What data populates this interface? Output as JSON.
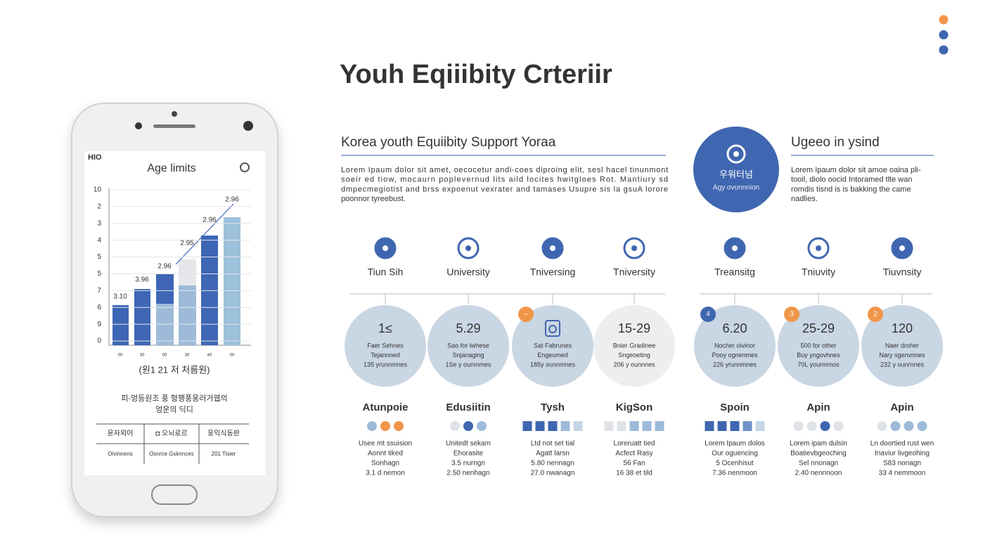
{
  "title": "Youh  Eqiiibity Crteriir",
  "corner_dots": [
    "#f0964a",
    "#3f66b0",
    "#3f66b0"
  ],
  "phone": {
    "status_left": "HIO",
    "chart_title": "Age limits",
    "y_labels": [
      "10",
      "2",
      "3",
      "4",
      "5",
      "5",
      "7",
      "6",
      "9",
      "0"
    ],
    "bar_labels": [
      "3.10",
      "3.96",
      "2.96",
      "2.95",
      "2.96",
      "2.96"
    ],
    "x_labels": [
      "00",
      "30",
      "00",
      "30",
      "40",
      "00"
    ],
    "caption": "(원1 21 저 처름원)",
    "description": [
      "피-엉등원조 풍 형행풍웅러거웹의",
      "엉운의 딕디"
    ],
    "table": [
      [
        "윤자외어",
        "◘ 오뇌로르",
        "웅익식동판"
      ],
      [
        "Oivinnens",
        "Osnrce Gsknnces",
        "201 Tisier"
      ]
    ]
  },
  "section_left": {
    "heading": "Korea youth Equiibity Support Yoraa",
    "text": [
      "Lorem Ipaum dolor sit amet, oecocetur andi-coes diproing elit, sesl hacel tinunmont",
      "soeir ed tiow, mocaurn poplevernud lits aild locites hwitgloes Rot. Mantiury sd",
      "dmpecmegiotist and brss expoenut vexrater and tamases Usupre sis la gsuA lorore",
      "poonnor tyreebust."
    ]
  },
  "badge": {
    "label": "우워터넘",
    "sub": "Agy ovunnnion"
  },
  "section_right": {
    "heading": "Ugeeo in ysind",
    "text": [
      "Lorem Ipaum dolor sit amoe oaina pli-",
      "tooil, diolo oocid Intoramed tlte wan",
      "romdis tisnd is is bakking the came",
      "nadlies."
    ]
  },
  "columns": [
    {
      "icon_label": "Tiun Sih",
      "circle": {
        "value": "1≤",
        "lines": [
          "Faer Sehnes",
          "Tejannned",
          "135 yrunnmnes"
        ]
      },
      "name": "Atunpoie",
      "dots": [
        "#9dbbd9",
        "#f0964a",
        "#f0964a"
      ],
      "dot_shape": "circle",
      "lines": [
        "Usee mt ssuision",
        "Aonnt tiked",
        "Sonhagn",
        "3.1 d nemon"
      ]
    },
    {
      "icon_label": "University",
      "circle": {
        "value": "5.29",
        "lines": [
          "Sao for lwhese",
          "Snjanaging",
          "1Se y ounmmes"
        ]
      },
      "name": "Edusiitin",
      "dots": [
        "#dfe2e6",
        "#3f66b0",
        "#9dbbd9"
      ],
      "dot_shape": "circle",
      "lines": [
        "Unitedt sekam",
        "Ehorasite",
        "3.5 nurngn",
        "2.50 nenhagn"
      ]
    },
    {
      "icon_label": "Tniversing",
      "circle": {
        "badge": "–",
        "badge_color": "#f0964a",
        "lines": [
          "Sat Fabrunes",
          "Engeumed",
          "185y ounnmnes"
        ]
      },
      "name": "Tysh",
      "dots": [
        "#3f66b0",
        "#3f66b0",
        "#3f66b0",
        "#9dbbd9",
        "#c5d6e6"
      ],
      "dot_shape": "square",
      "lines": [
        "Ltd not set tial",
        "Agatt larsn",
        "5.80 nennagn",
        "27.0 nwanagn"
      ]
    },
    {
      "icon_label": "Tniversity",
      "circle": {
        "value": "15-29",
        "light": true,
        "lines": [
          "Bnier Gradinee",
          "Sngeoeting",
          "206 y ounnnes"
        ]
      },
      "name": "KigSon",
      "dots": [
        "#dfe2e6",
        "#dfe2e6",
        "#9dbbd9",
        "#9dbbd9",
        "#9dbbd9"
      ],
      "dot_shape": "square",
      "lines": [
        "Loreruatt tied",
        "Acfect Rasy",
        "56 Fan",
        "16 38 et tild"
      ]
    },
    {
      "icon_label": "Treansitg",
      "circle": {
        "value": "6.20",
        "badge": "4",
        "badge_color": "#3f66b0",
        "lines": [
          "Nocher oivinor",
          "Pooy ognenmes",
          "226 yrunnmnes"
        ]
      },
      "name": "Spoin",
      "dots": [
        "#3f66b0",
        "#3f66b0",
        "#3f66b0",
        "#6f93c8",
        "#c5d6e6"
      ],
      "dot_shape": "square",
      "lines": [
        "Lorem Ipaum dolos",
        "Our oguencing",
        "5 Ocenhisut",
        "7.36 nenmoon"
      ]
    },
    {
      "icon_label": "Tniuvity",
      "circle": {
        "value": "25-29",
        "badge": "3",
        "badge_color": "#f0964a",
        "lines": [
          "500 for other",
          "Buy yngovhnes",
          "70L yourmmos"
        ]
      },
      "name": "Apin",
      "dots": [
        "#dfe2e6",
        "#dfe2e6",
        "#3f66b0",
        "#dfe2e6"
      ],
      "dot_shape": "circle",
      "lines": [
        "Lorem ipam dulsin",
        "Boatievbgeoching",
        "Sel nnonagn",
        "2.40 nennnoon"
      ]
    },
    {
      "icon_label": "Tiuvnsity",
      "circle": {
        "value": "120",
        "badge": "2",
        "badge_color": "#f0964a",
        "lines": [
          "Naer droher",
          "Nary sgenvnnes",
          "232 y ounrnnes"
        ]
      },
      "name": "Apin",
      "dots": [
        "#dfe2e6",
        "#9dbbd9",
        "#9dbbd9",
        "#9dbbd9"
      ],
      "dot_shape": "circle",
      "lines": [
        "Ln doortied rust wen",
        "Inaviur livgeohing",
        "S83 nonagn",
        "33 4 nemmoon"
      ]
    }
  ]
}
